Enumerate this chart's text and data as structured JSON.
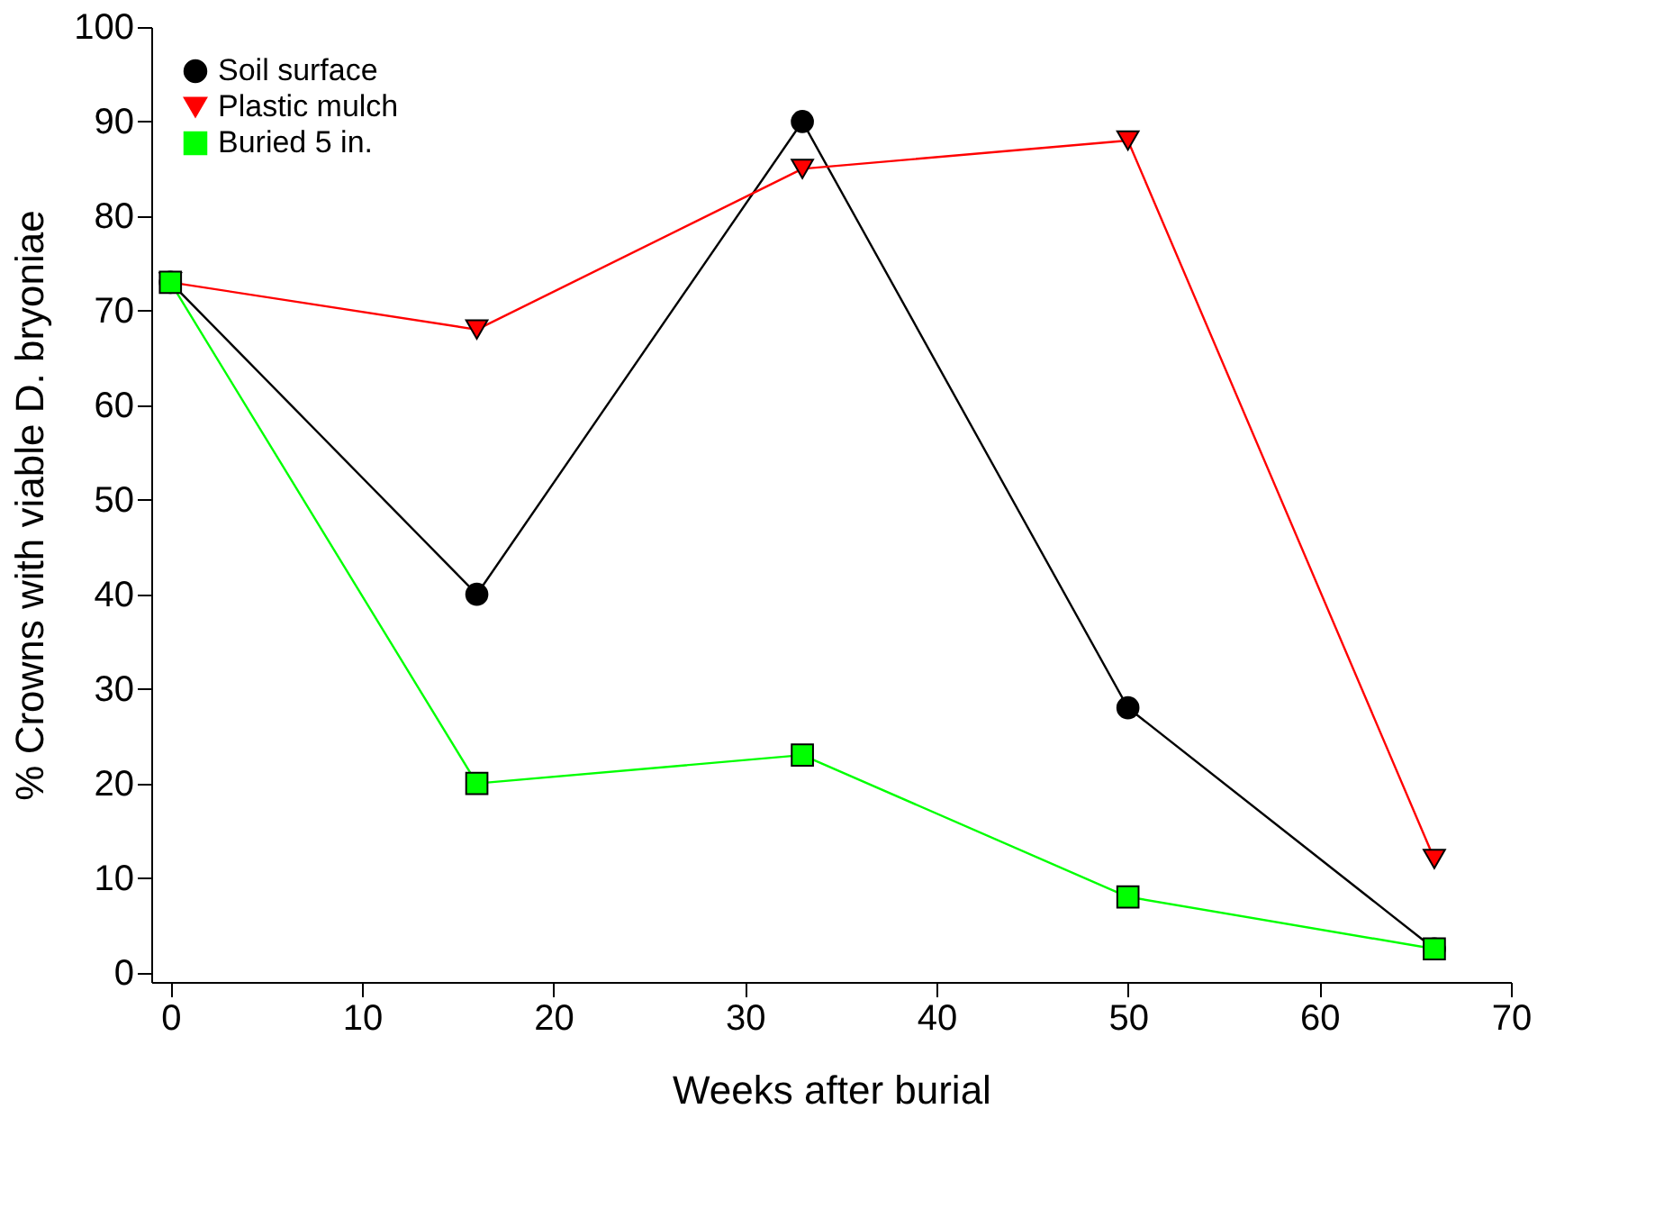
{
  "chart_data": {
    "type": "line",
    "xlabel": "Weeks after burial",
    "ylabel": "% Crowns with viable D. bryoniae",
    "x": [
      0,
      16,
      33,
      50,
      66
    ],
    "series": [
      {
        "name": "Soil surface",
        "color": "#000000",
        "marker": "circle",
        "values": [
          73,
          40,
          90,
          28,
          2.5
        ]
      },
      {
        "name": "Plastic mulch",
        "color": "#ff0000",
        "marker": "triangle",
        "values": [
          73,
          68,
          85,
          88,
          12
        ]
      },
      {
        "name": "Buried 5 in.",
        "color": "#00ff00",
        "marker": "square",
        "values": [
          73,
          20,
          23,
          8,
          2.5
        ]
      }
    ],
    "xlim": [
      -1,
      70
    ],
    "ylim": [
      -1,
      100
    ],
    "xticks": [
      0,
      10,
      20,
      30,
      40,
      50,
      60,
      70
    ],
    "yticks": [
      0,
      10,
      20,
      30,
      40,
      50,
      60,
      70,
      80,
      90,
      100
    ],
    "grid": false,
    "legend": "top left",
    "line_style": "solid"
  }
}
